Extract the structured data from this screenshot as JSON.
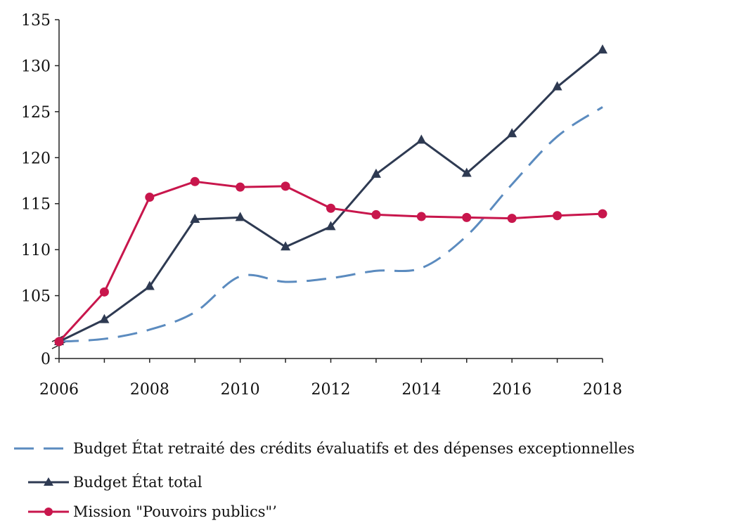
{
  "chart_data": {
    "type": "line",
    "title": "",
    "xlabel": "",
    "ylabel": "",
    "x": [
      2006,
      2007,
      2008,
      2009,
      2010,
      2011,
      2012,
      2013,
      2014,
      2015,
      2016,
      2017,
      2018
    ],
    "x_ticks": [
      2006,
      2008,
      2010,
      2012,
      2014,
      2016,
      2018
    ],
    "y_ticks": [
      0,
      105,
      110,
      115,
      120,
      125,
      130,
      135
    ],
    "y_axis_break": {
      "from": 0,
      "to": 100
    },
    "ylim": [
      100,
      135
    ],
    "grid": false,
    "legend_position": "bottom-left",
    "series": [
      {
        "name": "Budget État retraité des crédits évaluatifs et des dépenses exceptionnelles",
        "style": "dashed",
        "marker": "none",
        "color": "#5b8bbf",
        "values": [
          100,
          100.3,
          101.3,
          103.2,
          107.1,
          106.5,
          106.9,
          107.7,
          108.0,
          111.5,
          117.1,
          122.3,
          125.5
        ]
      },
      {
        "name": "Budget État total",
        "style": "solid",
        "marker": "triangle",
        "color": "#2e3a52",
        "values": [
          100,
          102.4,
          106.0,
          113.3,
          113.5,
          110.3,
          112.5,
          118.2,
          121.9,
          118.3,
          122.6,
          127.7,
          131.7
        ]
      },
      {
        "name": "Mission \"Pouvoirs publics\"’",
        "style": "solid",
        "marker": "circle",
        "color": "#c8164c",
        "values": [
          100,
          105.4,
          115.7,
          117.4,
          116.8,
          116.9,
          114.5,
          113.8,
          113.6,
          113.5,
          113.4,
          113.7,
          113.9
        ]
      }
    ]
  }
}
